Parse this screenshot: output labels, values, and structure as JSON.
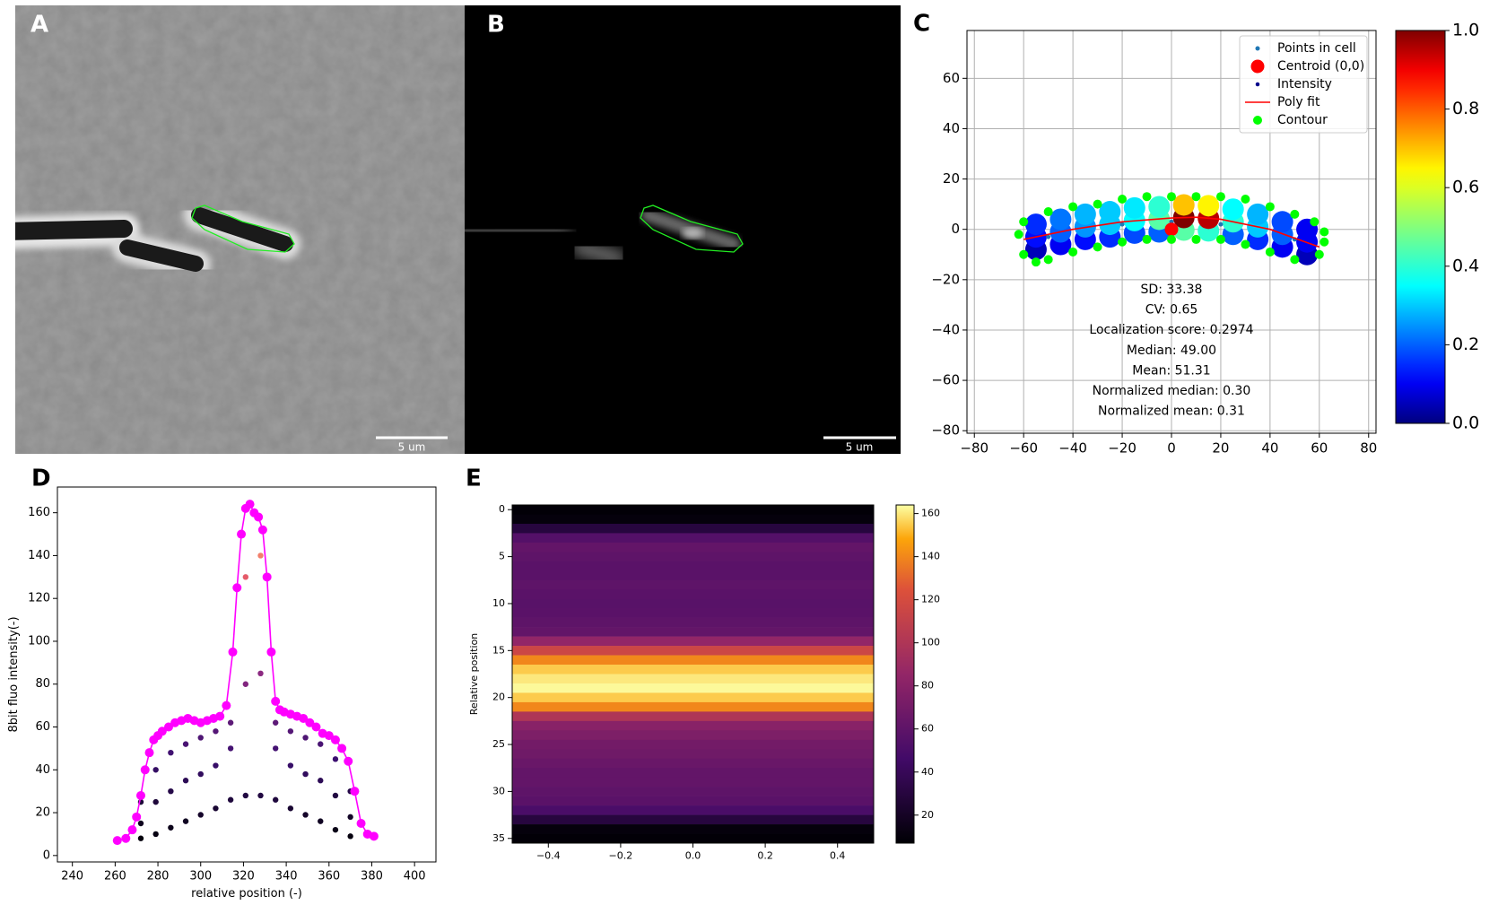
{
  "panels": [
    {
      "label": "A",
      "scale_bar": "5 um"
    },
    {
      "label": "B",
      "scale_bar": "5 um"
    }
  ],
  "chart_data": [
    {
      "type": "scatter",
      "panel_label": "C",
      "xlim": [
        -83,
        83
      ],
      "ylim": [
        -81,
        79
      ],
      "xticks": [
        {
          "value": -80,
          "label": "−80"
        },
        {
          "value": -60,
          "label": "−60"
        },
        {
          "value": -40,
          "label": "−40"
        },
        {
          "value": -20,
          "label": "−20"
        },
        0,
        20,
        40,
        60,
        80
      ],
      "yticks": [
        {
          "value": -80,
          "label": "−80"
        },
        {
          "value": -60,
          "label": "−60"
        },
        {
          "value": -40,
          "label": "−40"
        },
        {
          "value": -20,
          "label": "−20"
        },
        0,
        20,
        40,
        60
      ],
      "grid": true,
      "legend": "upper right",
      "series": [
        {
          "name": "Points in cell",
          "color": "#1f77b4",
          "marker": "point",
          "x": [
            -50,
            -20,
            0,
            20,
            50
          ],
          "y": [
            -3,
            2,
            3,
            2,
            -4
          ]
        },
        {
          "name": "Centroid (0,0)",
          "color": "#ff0000",
          "marker": "large",
          "x": [
            0
          ],
          "y": [
            0
          ]
        },
        {
          "name": "Intensity",
          "color": "#00008b",
          "marker": "cell",
          "x": [
            -55,
            -45,
            -35,
            -25,
            -15,
            -5,
            5,
            15,
            25,
            35,
            45,
            55,
            -55,
            -45,
            -35,
            -25,
            -15,
            -5,
            5,
            15,
            25,
            35,
            45,
            55,
            -55,
            -45,
            -35,
            -25,
            -15,
            -5,
            5,
            15,
            25,
            35,
            45,
            55
          ],
          "y": [
            -8,
            -6,
            -4,
            -3,
            -1.5,
            -1,
            -0.3,
            -0.6,
            -2,
            -4,
            -7,
            -10,
            -3,
            -1,
            1,
            2,
            3.5,
            4,
            4.7,
            4.4,
            3,
            1,
            -2,
            -5,
            2,
            4,
            6,
            7,
            8.5,
            9,
            9.7,
            9.4,
            8,
            6,
            3,
            0
          ],
          "values": [
            0.05,
            0.1,
            0.12,
            0.15,
            0.18,
            0.2,
            0.45,
            0.4,
            0.2,
            0.15,
            0.1,
            0.05,
            0.12,
            0.2,
            0.25,
            0.3,
            0.35,
            0.45,
            1.0,
            0.95,
            0.4,
            0.3,
            0.2,
            0.1,
            0.15,
            0.22,
            0.28,
            0.3,
            0.33,
            0.4,
            0.7,
            0.65,
            0.35,
            0.28,
            0.18,
            0.1
          ]
        },
        {
          "name": "Poly fit",
          "color": "#ff0000",
          "style": "line",
          "x": [
            -60,
            -40,
            -20,
            0,
            10,
            20,
            40,
            60
          ],
          "y": [
            -4,
            0,
            3,
            4.5,
            4.8,
            4,
            0,
            -7
          ]
        },
        {
          "name": "Contour",
          "color": "#00ff00",
          "marker": "circle",
          "x": [
            -62,
            -60,
            -50,
            -40,
            -30,
            -20,
            -10,
            0,
            10,
            20,
            30,
            40,
            50,
            58,
            62,
            62,
            60,
            50,
            40,
            30,
            20,
            10,
            0,
            -10,
            -20,
            -30,
            -40,
            -50,
            -55,
            -60
          ],
          "y": [
            -2,
            3,
            7,
            9,
            10,
            12,
            13,
            13,
            13,
            13,
            12,
            9,
            6,
            3,
            -1,
            -5,
            -10,
            -12,
            -9,
            -6,
            -4,
            -4,
            -4,
            -4,
            -5,
            -7,
            -9,
            -12,
            -13,
            -10
          ]
        }
      ],
      "annotations": [
        "SD: 33.38",
        "CV: 0.65",
        "Localization score: 0.2974",
        "Median: 49.00",
        "Mean: 51.31",
        "Normalized median: 0.30",
        "Normalized mean: 0.31"
      ],
      "colorbar": {
        "colormap": "jet",
        "clim": [
          0,
          1
        ],
        "ticks": [
          {
            "value": 0,
            "label": "0.0"
          },
          0.2,
          0.4,
          0.6,
          0.8,
          {
            "value": 1,
            "label": "1.0"
          }
        ]
      }
    },
    {
      "type": "scatter",
      "panel_label": "D",
      "x_label": "relative position (-)",
      "y_label": "8bit fluo intensity(-)",
      "xlim": [
        233,
        410
      ],
      "ylim": [
        -3,
        172
      ],
      "xticks": [
        240,
        260,
        280,
        300,
        320,
        340,
        360,
        380,
        400
      ],
      "yticks": [
        0,
        20,
        40,
        60,
        80,
        100,
        120,
        140,
        160
      ],
      "series": [
        {
          "colormap": "magma",
          "clim": [
            5,
            165
          ],
          "marker": "dot",
          "x": [
            272,
            272,
            272,
            279,
            279,
            279,
            286,
            286,
            286,
            293,
            293,
            293,
            300,
            300,
            300,
            307,
            307,
            307,
            314,
            314,
            314,
            321,
            321,
            321,
            328,
            328,
            328,
            335,
            335,
            335,
            342,
            342,
            342,
            349,
            349,
            349,
            356,
            356,
            356,
            363,
            363,
            363,
            370,
            370,
            370
          ],
          "y": [
            8,
            15,
            25,
            10,
            25,
            40,
            13,
            30,
            48,
            16,
            35,
            52,
            19,
            38,
            55,
            22,
            42,
            58,
            26,
            50,
            62,
            28,
            80,
            130,
            28,
            85,
            140,
            26,
            50,
            62,
            22,
            42,
            58,
            19,
            38,
            55,
            16,
            35,
            52,
            12,
            28,
            45,
            9,
            18,
            30
          ]
        },
        {
          "color": "#ff00ff",
          "style": "line-marker",
          "marker": "circle",
          "x": [
            261,
            265,
            268,
            270,
            272,
            274,
            276,
            278,
            280,
            282,
            285,
            288,
            291,
            294,
            297,
            300,
            303,
            306,
            309,
            312,
            315,
            317,
            319,
            321,
            323,
            325,
            327,
            329,
            331,
            333,
            335,
            337,
            339,
            342,
            345,
            348,
            351,
            354,
            357,
            360,
            363,
            366,
            369,
            372,
            375,
            378,
            381
          ],
          "y": [
            7,
            8,
            12,
            18,
            28,
            40,
            48,
            54,
            56,
            58,
            60,
            62,
            63,
            64,
            63,
            62,
            63,
            64,
            65,
            70,
            95,
            125,
            150,
            162,
            164,
            160,
            158,
            152,
            130,
            95,
            72,
            68,
            67,
            66,
            65,
            64,
            62,
            60,
            57,
            56,
            54,
            50,
            44,
            30,
            15,
            10,
            9
          ]
        }
      ]
    },
    {
      "type": "heatmap",
      "panel_label": "E",
      "y_label": "Relative position",
      "xlim": [
        -0.5,
        0.5
      ],
      "ylim": [
        35.5,
        -0.5
      ],
      "xticks": [
        {
          "value": -0.4,
          "label": "−0.4"
        },
        {
          "value": -0.2,
          "label": "−0.2"
        },
        {
          "value": 0,
          "label": "0.0"
        },
        0.2,
        0.4
      ],
      "yticks": [
        0,
        5,
        10,
        15,
        20,
        25,
        30,
        35
      ],
      "y": [
        0,
        1,
        2,
        3,
        4,
        5,
        6,
        7,
        8,
        9,
        10,
        11,
        12,
        13,
        14,
        15,
        16,
        17,
        18,
        19,
        20,
        21,
        22,
        23,
        24,
        25,
        26,
        27,
        28,
        29,
        30,
        31,
        32,
        33,
        34,
        35
      ],
      "values": [
        8,
        10,
        30,
        55,
        62,
        60,
        58,
        58,
        60,
        58,
        57,
        58,
        60,
        62,
        85,
        115,
        140,
        155,
        160,
        163,
        155,
        140,
        100,
        80,
        75,
        70,
        68,
        65,
        62,
        62,
        60,
        58,
        50,
        30,
        10,
        8
      ],
      "colorbar": {
        "colormap": "inferno",
        "clim": [
          7,
          164
        ],
        "ticks": [
          20,
          40,
          60,
          80,
          100,
          120,
          140,
          160
        ]
      }
    }
  ]
}
